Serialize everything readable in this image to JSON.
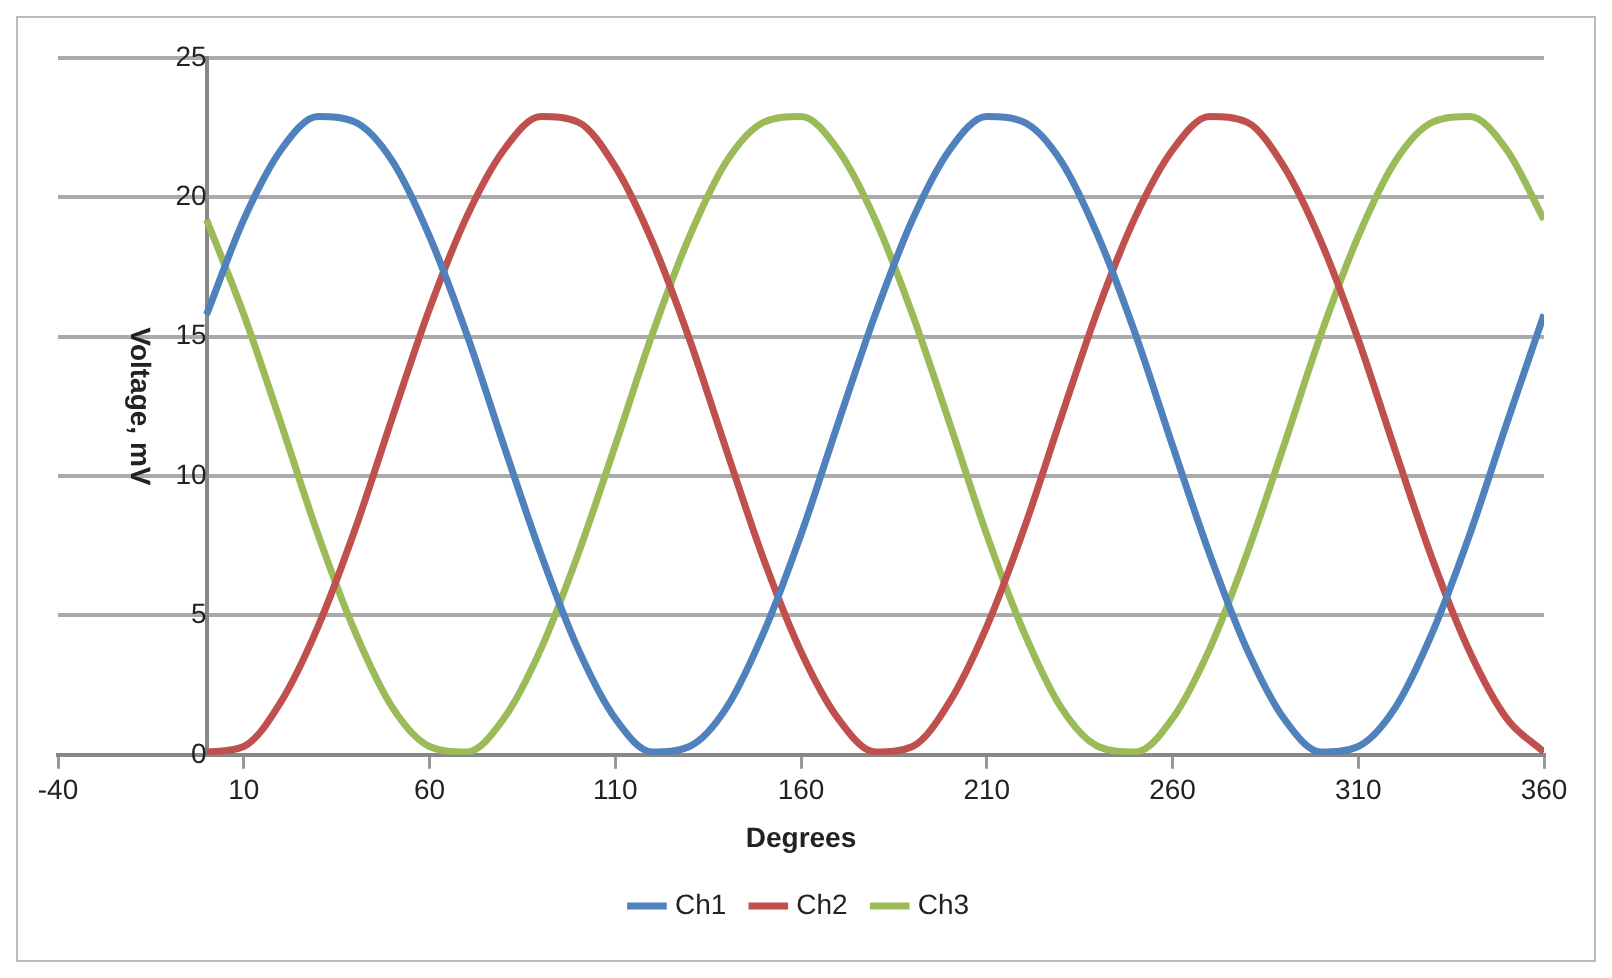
{
  "chart_data": {
    "type": "line",
    "xlabel": "Degrees",
    "ylabel": "Voltage, mV",
    "x": [
      0,
      10,
      20,
      30,
      40,
      50,
      60,
      70,
      80,
      90,
      100,
      110,
      120,
      130,
      140,
      150,
      160,
      170,
      180,
      190,
      200,
      210,
      220,
      230,
      240,
      250,
      260,
      270,
      280,
      290,
      300,
      310,
      320,
      330,
      340,
      350,
      360
    ],
    "series": [
      {
        "name": "Ch1",
        "color": "#4f81bd",
        "values": [
          15.8,
          19.2,
          21.7,
          22.9,
          22.7,
          21.3,
          18.6,
          15.1,
          11.1,
          7.2,
          3.8,
          1.3,
          0.1,
          0.3,
          1.7,
          4.4,
          7.9,
          11.9,
          15.8,
          19.2,
          21.7,
          22.9,
          22.7,
          21.3,
          18.6,
          15.1,
          11.1,
          7.2,
          3.8,
          1.3,
          0.1,
          0.3,
          1.7,
          4.4,
          7.9,
          11.9,
          15.8
        ]
      },
      {
        "name": "Ch2",
        "color": "#c0504d",
        "values": [
          0.1,
          0.3,
          1.9,
          4.6,
          8.1,
          12.1,
          16.0,
          19.3,
          21.7,
          22.9,
          22.7,
          21.1,
          18.4,
          14.9,
          10.9,
          7.0,
          3.7,
          1.3,
          0.1,
          0.3,
          1.9,
          4.6,
          8.1,
          12.1,
          16.0,
          19.3,
          21.7,
          22.9,
          22.7,
          21.1,
          18.4,
          14.9,
          10.9,
          7.0,
          3.7,
          1.3,
          0.1
        ]
      },
      {
        "name": "Ch3",
        "color": "#9bbb59",
        "values": [
          19.2,
          15.8,
          11.9,
          7.9,
          4.4,
          1.7,
          0.3,
          0.1,
          1.3,
          3.8,
          7.2,
          11.1,
          15.1,
          18.6,
          21.3,
          22.7,
          22.9,
          21.7,
          19.2,
          15.8,
          11.9,
          7.9,
          4.4,
          1.7,
          0.3,
          0.1,
          1.3,
          3.8,
          7.2,
          11.1,
          15.1,
          18.6,
          21.3,
          22.7,
          22.9,
          21.7,
          19.2
        ]
      }
    ],
    "xlim": [
      -40,
      360
    ],
    "xticks": [
      -40,
      10,
      60,
      110,
      160,
      210,
      260,
      310,
      360
    ],
    "ylim": [
      0,
      25
    ],
    "yticks": [
      0,
      5,
      10,
      15,
      20,
      25
    ],
    "grid": "y",
    "legend": "bottom"
  }
}
